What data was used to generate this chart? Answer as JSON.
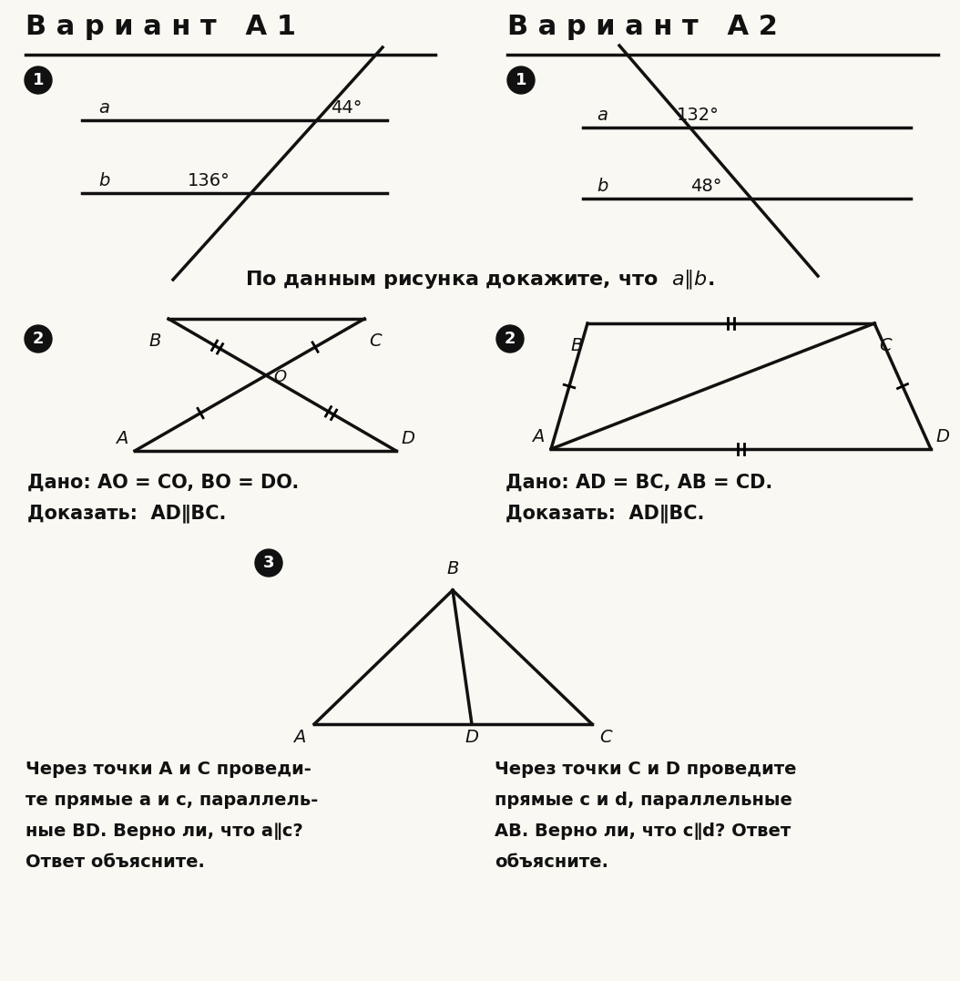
{
  "bg_color": "#faf8f2",
  "title_a1": "В а р и а н т   А 1",
  "title_a2": "В а р и а н т   А 2",
  "angle_a1_top": "44°",
  "angle_a1_bot": "136°",
  "angle_a2_top": "132°",
  "angle_a2_bot": "48°",
  "middle_text": "По данным рисунка докажите, что",
  "dano_a1_2": "Дано: AO = CO, BO = DO.",
  "dano_a2_2": "Дано: AD = BC, AB = CD.",
  "text3_a1": [
    "Через точки A и C проведи-",
    "те прямые a и c, параллель-",
    "ные BD. Верно ли, что a∥c?",
    "Ответ объясните."
  ],
  "text3_a2": [
    "Через точки C и D проведите",
    "прямые c и d, параллельные",
    "AB. Верно ли, что c∥d? Ответ",
    "объясните."
  ]
}
